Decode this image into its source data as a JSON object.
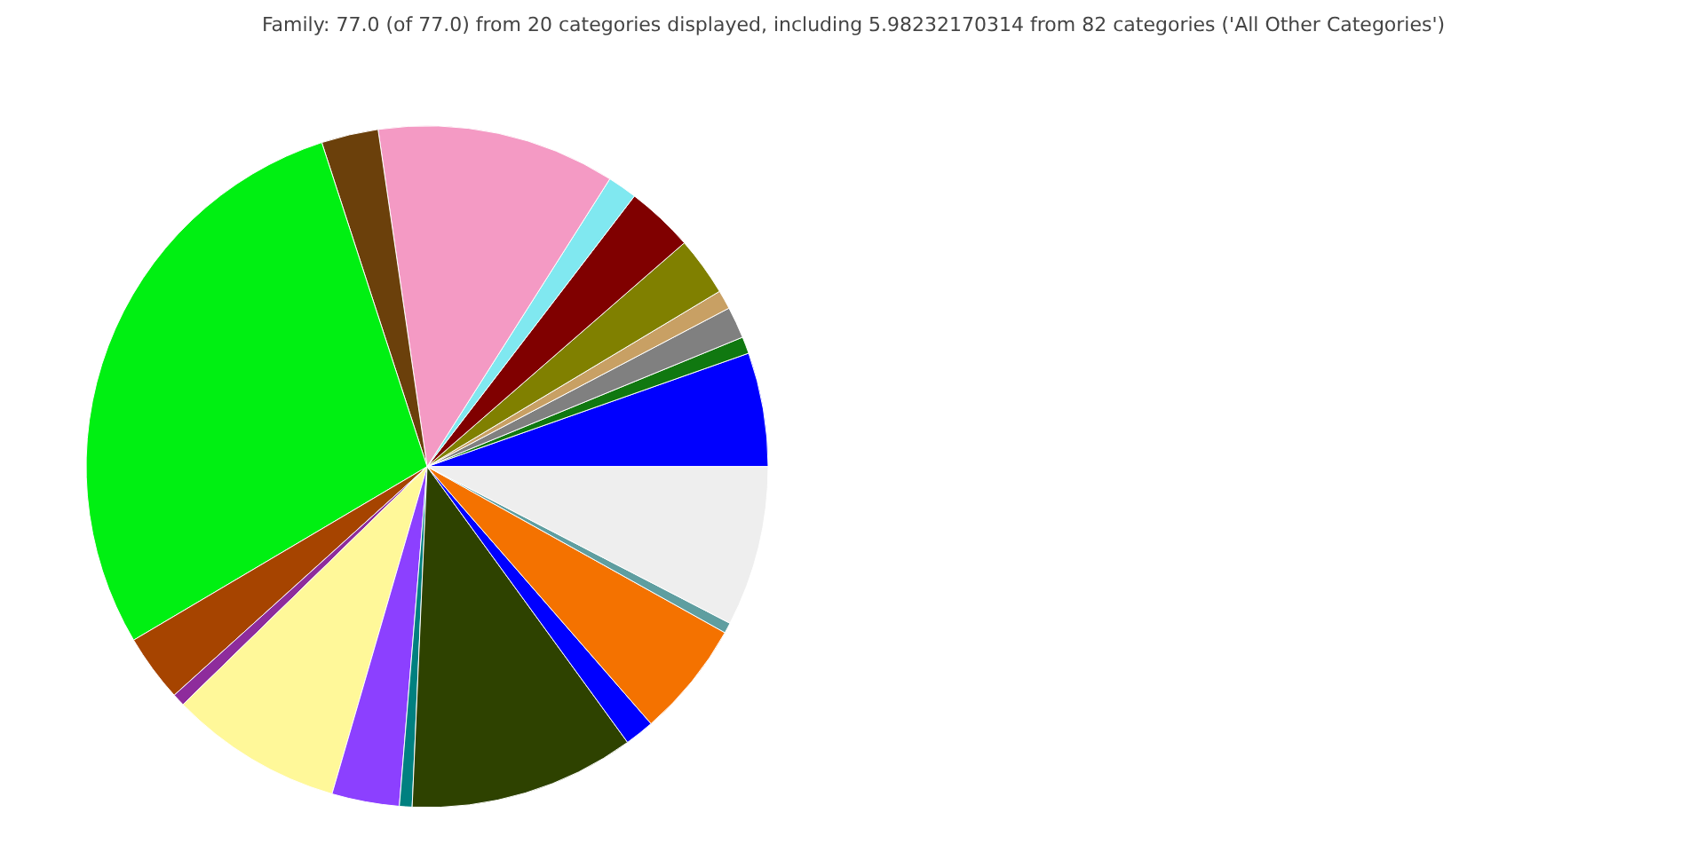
{
  "chart_data": {
    "type": "pie",
    "title": "Family: 77.0 (of 77.0) from 20 categories displayed, including 5.98232170314 from 82 categories ('All Other Categories')",
    "categories": [
      null,
      null,
      null,
      null,
      null,
      null,
      null,
      null,
      null,
      null,
      null,
      null,
      null,
      null,
      null,
      null,
      null,
      null,
      null,
      null
    ],
    "values": [
      5.4,
      0.8,
      1.5,
      0.9,
      2.8,
      3.2,
      1.4,
      11.3,
      2.7,
      28.5,
      3.2,
      0.6,
      8.2,
      3.2,
      0.6,
      10.7,
      1.4,
      5.5,
      0.5,
      7.6
    ],
    "colors": [
      "#0000ff",
      "#107810",
      "#808080",
      "#c8a064",
      "#808000",
      "#800000",
      "#80e8f0",
      "#f49ac4",
      "#6b400b",
      "#00f012",
      "#a64400",
      "#8e2c9c",
      "#fff899",
      "#8c40ff",
      "#008080",
      "#2e4200",
      "#0000ff",
      "#f47200",
      "#5f9ea0",
      "#eeeeee"
    ]
  }
}
